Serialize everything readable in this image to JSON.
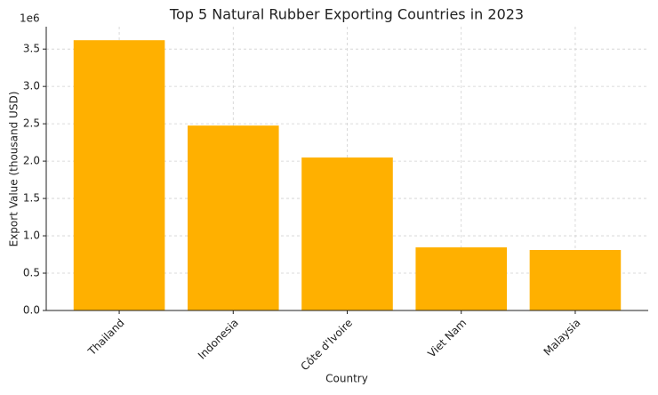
{
  "chart_data": {
    "type": "bar",
    "title": "Top 5 Natural Rubber Exporting Countries in 2023",
    "x_label": "Country",
    "y_label": "Export Value (thousand USD)",
    "y_offset_label": "1e6",
    "categories": [
      "Thailand",
      "Indonesia",
      "Côte d'Ivoire",
      "Viet Nam",
      "Malaysia"
    ],
    "values": [
      3619000,
      2476000,
      2048000,
      845000,
      810000
    ],
    "color": "#ffb000",
    "ylim": [
      0,
      3800000
    ],
    "yticks": [
      {
        "value": 0,
        "label": "0.0"
      },
      {
        "value": 500000,
        "label": "0.5"
      },
      {
        "value": 1000000,
        "label": "1.0"
      },
      {
        "value": 1500000,
        "label": "1.5"
      },
      {
        "value": 2000000,
        "label": "2.0"
      },
      {
        "value": 2500000,
        "label": "2.5"
      },
      {
        "value": 3000000,
        "label": "3.0"
      },
      {
        "value": 3500000,
        "label": "3.5"
      }
    ],
    "grid": true
  }
}
